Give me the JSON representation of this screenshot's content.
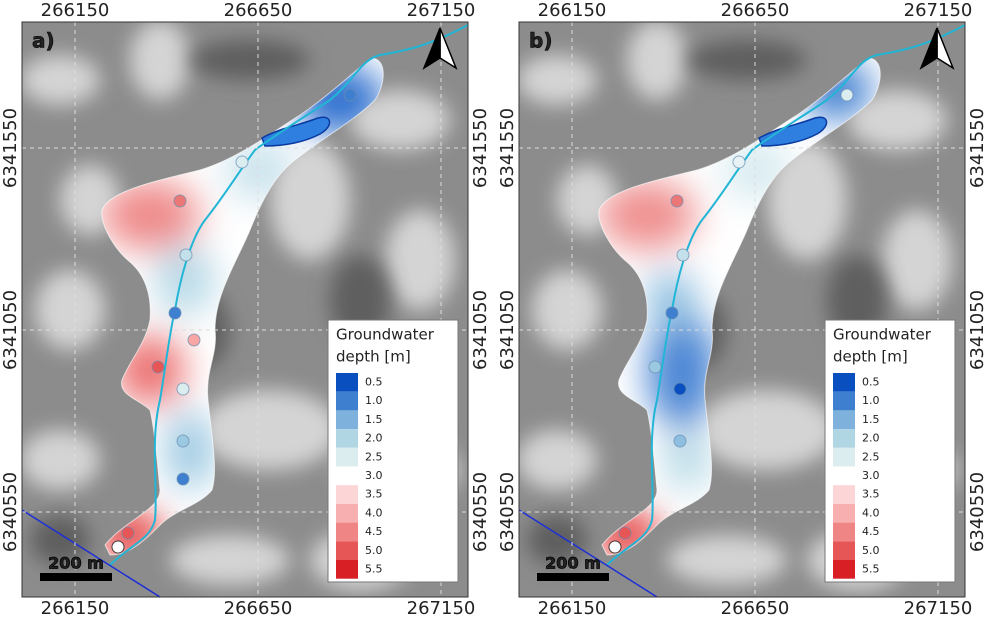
{
  "panels": [
    {
      "label": "a)",
      "xticks": [
        "266150",
        "266650",
        "267150"
      ],
      "yticks": [
        "6341550",
        "6341050",
        "6340550"
      ],
      "scale_bar": "200 m",
      "legend": {
        "title": [
          "Groundwater",
          "depth [m]"
        ],
        "items": [
          {
            "label": "0.5",
            "color": "#0a4fbf"
          },
          {
            "label": "1.0",
            "color": "#3f7fd0"
          },
          {
            "label": "1.5",
            "color": "#7eb1dc"
          },
          {
            "label": "2.0",
            "color": "#b1d6e3"
          },
          {
            "label": "2.5",
            "color": "#dcedf0"
          },
          {
            "label": "3.0",
            "color": "#ffffff"
          },
          {
            "label": "3.5",
            "color": "#fcd6d6"
          },
          {
            "label": "4.0",
            "color": "#f7afaf"
          },
          {
            "label": "4.5",
            "color": "#f08585"
          },
          {
            "label": "5.0",
            "color": "#e65656"
          },
          {
            "label": "5.5",
            "color": "#d91f26"
          }
        ]
      }
    },
    {
      "label": "b)",
      "xticks": [
        "266150",
        "266650",
        "267150"
      ],
      "yticks": [
        "6341550",
        "6341050",
        "6340550"
      ],
      "scale_bar": "200 m",
      "legend": {
        "title": [
          "Groundwater",
          "depth [m]"
        ],
        "items": [
          {
            "label": "0.5",
            "color": "#0a4fbf"
          },
          {
            "label": "1.0",
            "color": "#3f7fd0"
          },
          {
            "label": "1.5",
            "color": "#7eb1dc"
          },
          {
            "label": "2.0",
            "color": "#b1d6e3"
          },
          {
            "label": "2.5",
            "color": "#dcedf0"
          },
          {
            "label": "3.0",
            "color": "#ffffff"
          },
          {
            "label": "3.5",
            "color": "#fcd6d6"
          },
          {
            "label": "4.0",
            "color": "#f7afaf"
          },
          {
            "label": "4.5",
            "color": "#f08585"
          },
          {
            "label": "5.0",
            "color": "#e65656"
          },
          {
            "label": "5.5",
            "color": "#d91f26"
          }
        ]
      }
    }
  ]
}
